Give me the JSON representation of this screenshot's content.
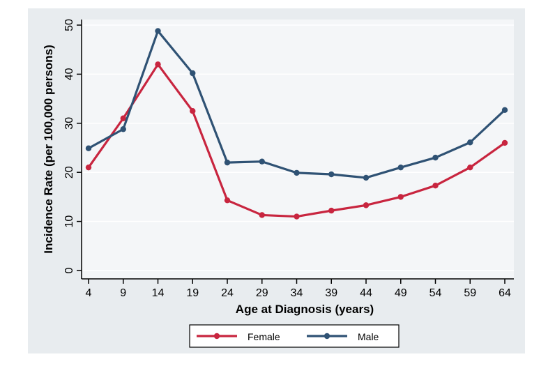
{
  "chart_data": {
    "type": "line",
    "title": "",
    "xlabel": "Age at Diagnosis (years)",
    "ylabel": "Incidence Rate (per 100,000 persons)",
    "x": [
      4,
      9,
      14,
      19,
      24,
      29,
      34,
      39,
      44,
      49,
      54,
      59,
      64
    ],
    "x_ticks": [
      "4",
      "9",
      "14",
      "19",
      "24",
      "29",
      "34",
      "39",
      "44",
      "49",
      "54",
      "59",
      "64"
    ],
    "y_ticks": [
      "0",
      "10",
      "20",
      "30",
      "40",
      "50"
    ],
    "ylim": [
      0,
      50
    ],
    "xlim": [
      4,
      64
    ],
    "grid": "horizontal",
    "legend_position": "bottom",
    "series": [
      {
        "name": "Female",
        "color": "#c8253f",
        "values": [
          21.0,
          31.0,
          42.0,
          32.5,
          14.3,
          11.3,
          11.0,
          12.2,
          13.3,
          15.0,
          17.3,
          21.0,
          26.0
        ]
      },
      {
        "name": "Male",
        "color": "#2f5274",
        "values": [
          24.9,
          28.8,
          48.8,
          40.2,
          22.0,
          22.2,
          19.9,
          19.6,
          18.9,
          21.0,
          23.0,
          26.1,
          32.7
        ]
      }
    ],
    "colors": {
      "outer_background": "#e8ecef",
      "plot_background": "#f4f6f8",
      "grid": "#ffffff",
      "axis": "#000000",
      "legend_box": "#000000",
      "legend_background": "#ffffff"
    }
  }
}
